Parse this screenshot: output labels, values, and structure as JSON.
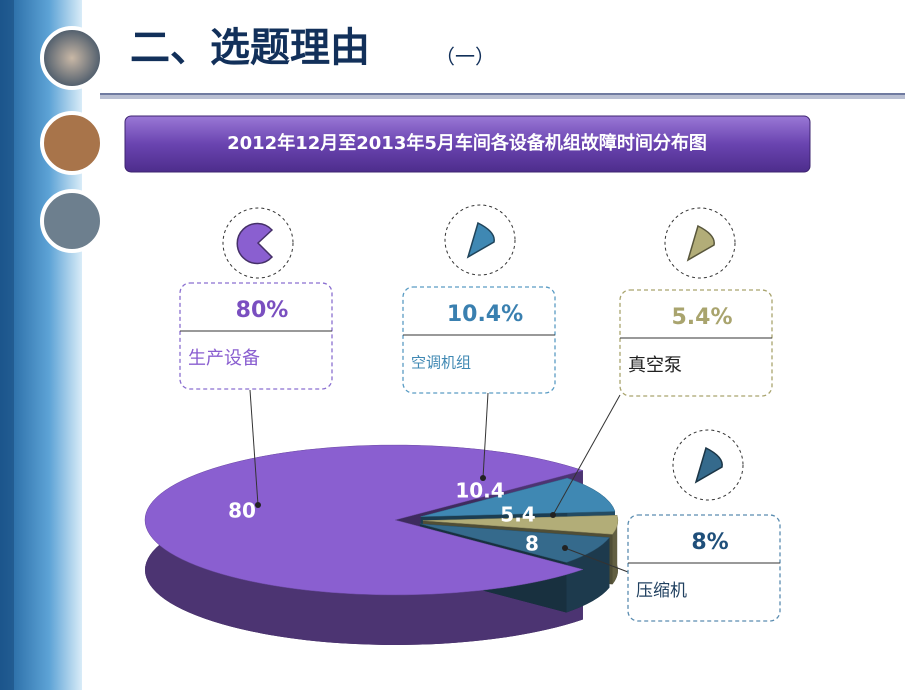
{
  "header": {
    "title": "二、选题理由",
    "subtitle": "（一）"
  },
  "chart_data": {
    "type": "pie",
    "title": "2012年12月至2013年5月车间各设备机组故障时间分布图",
    "categories": [
      "生产设备",
      "空调机组",
      "真空泵",
      "压缩机"
    ],
    "values": [
      80,
      10.4,
      5.4,
      8
    ],
    "value_labels": [
      "80%",
      "10.4%",
      "5.4%",
      "8%"
    ],
    "colors": [
      "#8a5fd0",
      "#3f88b3",
      "#b2ad78",
      "#356a8c"
    ]
  }
}
